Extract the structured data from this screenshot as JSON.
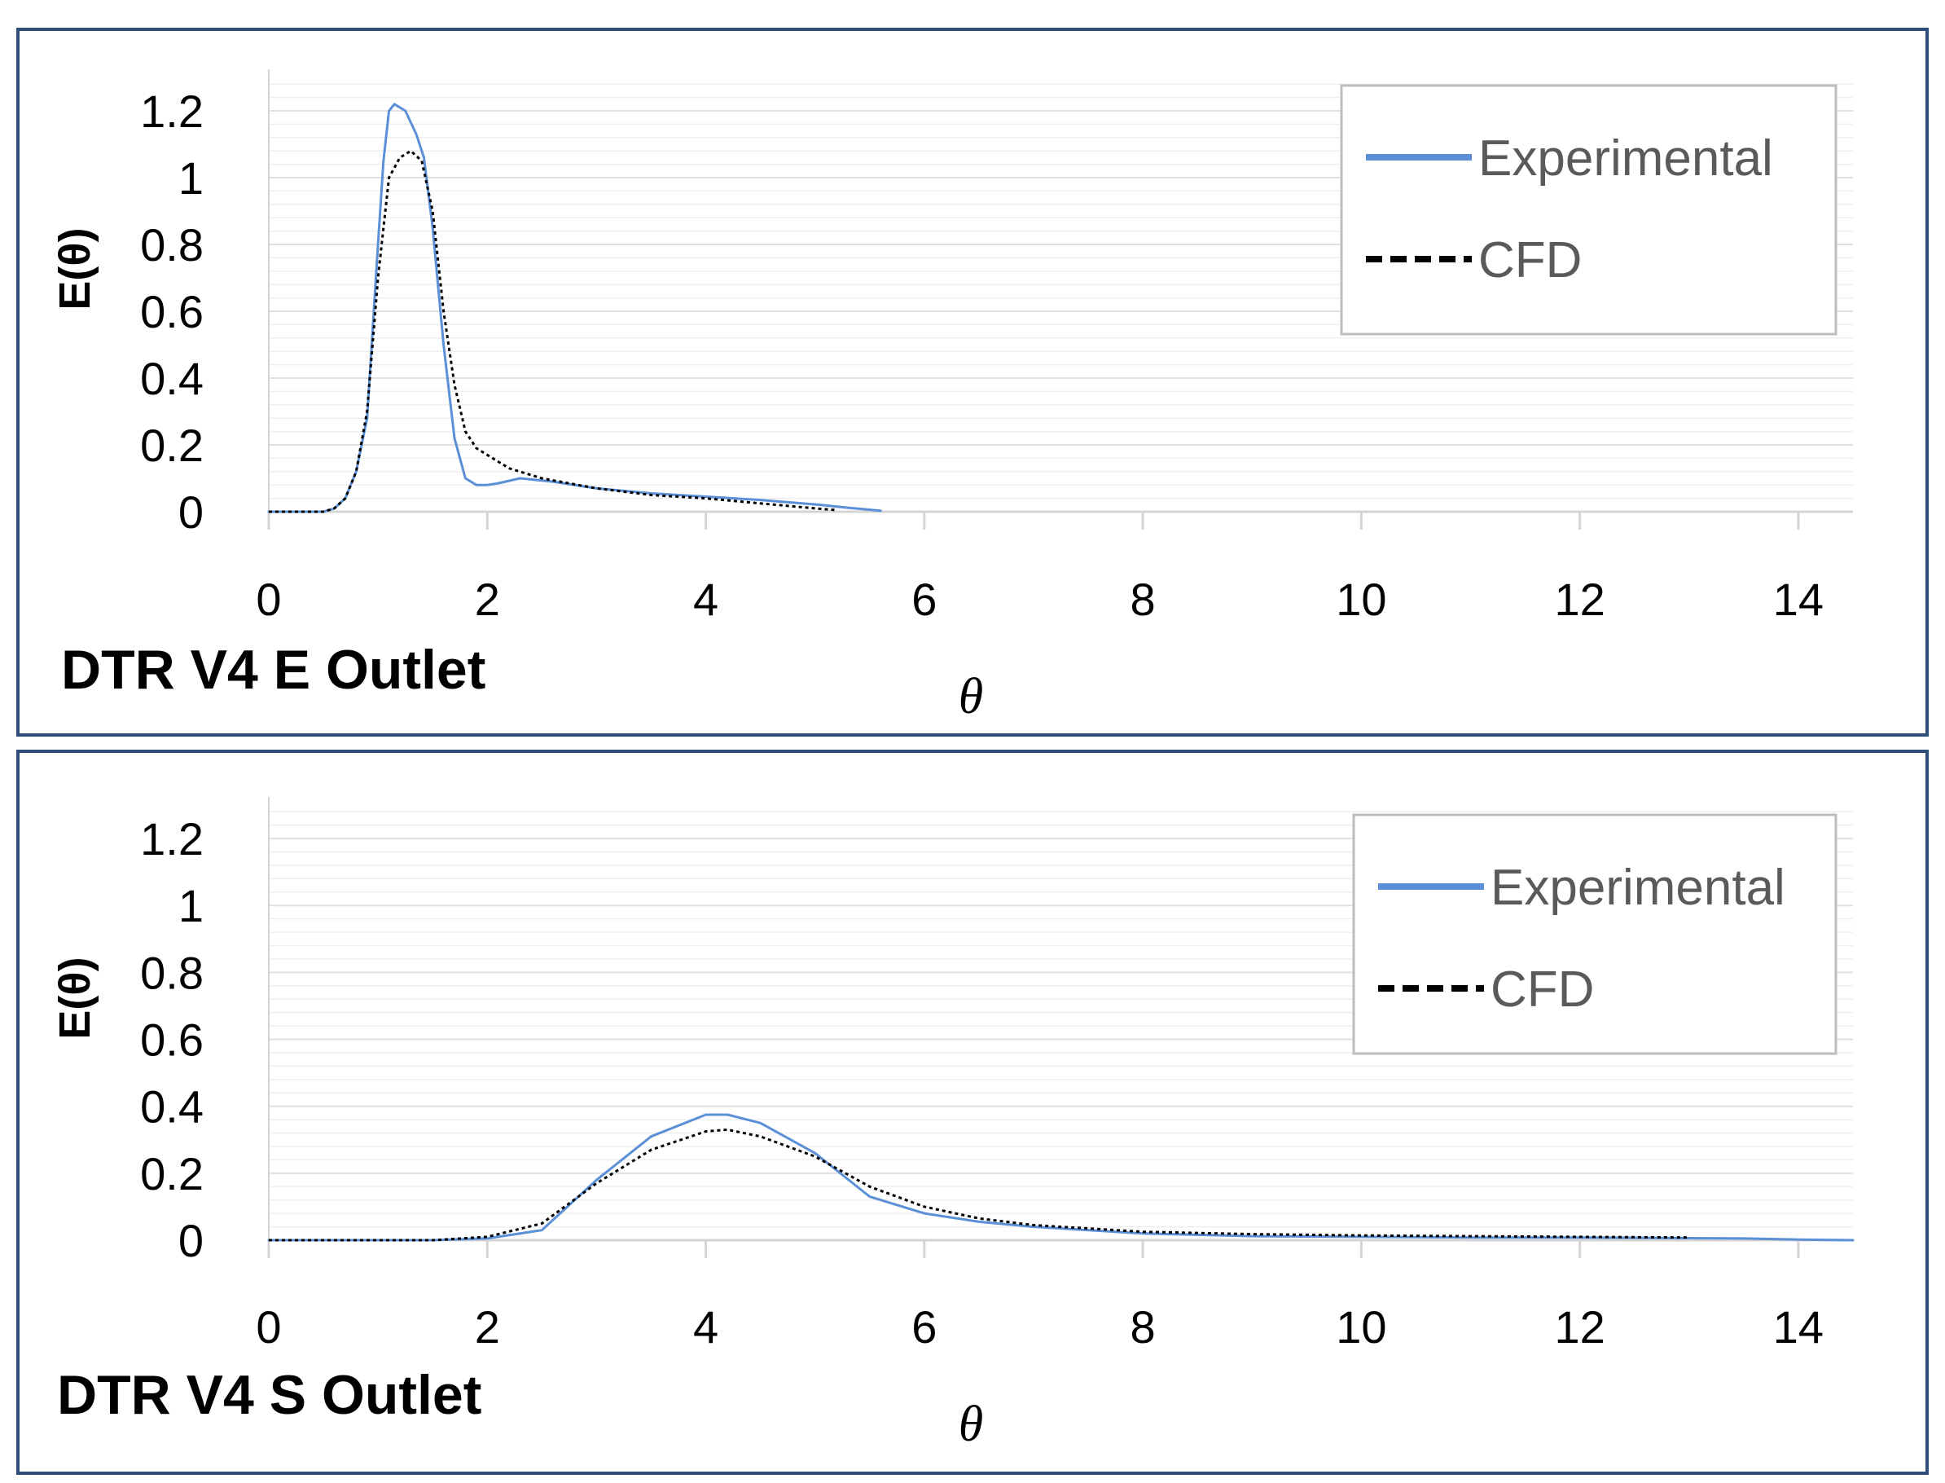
{
  "chart_data": [
    {
      "type": "line",
      "title": "DTR V4 E Outlet",
      "xlabel": "θ",
      "ylabel": "E(θ)",
      "xlim": [
        0,
        14.5
      ],
      "ylim": [
        0,
        1.3
      ],
      "x_ticks": [
        "0",
        "2",
        "4",
        "6",
        "8",
        "10",
        "12",
        "14"
      ],
      "y_ticks": [
        "0",
        "0.2",
        "0.4",
        "0.6",
        "0.8",
        "1",
        "1.2"
      ],
      "x_tick_values": [
        0,
        2,
        4,
        6,
        8,
        10,
        12,
        14
      ],
      "y_tick_values": [
        0,
        0.2,
        0.4,
        0.6,
        0.8,
        1.0,
        1.2
      ],
      "grid": "horizontal",
      "legend": "top-right",
      "series": [
        {
          "name": "Experimental",
          "color": "#5b8fd6",
          "style": "solid",
          "points": [
            [
              0,
              0
            ],
            [
              0.5,
              0
            ],
            [
              0.6,
              0.01
            ],
            [
              0.7,
              0.04
            ],
            [
              0.8,
              0.12
            ],
            [
              0.9,
              0.28
            ],
            [
              1.0,
              0.8
            ],
            [
              1.05,
              1.05
            ],
            [
              1.1,
              1.2
            ],
            [
              1.15,
              1.22
            ],
            [
              1.25,
              1.2
            ],
            [
              1.35,
              1.13
            ],
            [
              1.42,
              1.06
            ],
            [
              1.5,
              0.85
            ],
            [
              1.6,
              0.5
            ],
            [
              1.7,
              0.22
            ],
            [
              1.8,
              0.1
            ],
            [
              1.9,
              0.08
            ],
            [
              2.0,
              0.08
            ],
            [
              2.1,
              0.085
            ],
            [
              2.3,
              0.1
            ],
            [
              2.6,
              0.09
            ],
            [
              3.0,
              0.07
            ],
            [
              3.5,
              0.055
            ],
            [
              4.0,
              0.045
            ],
            [
              4.5,
              0.035
            ],
            [
              5.0,
              0.022
            ],
            [
              5.3,
              0.012
            ],
            [
              5.6,
              0.003
            ]
          ]
        },
        {
          "name": "CFD",
          "color": "#000000",
          "style": "dashed",
          "points": [
            [
              0,
              0
            ],
            [
              0.5,
              0
            ],
            [
              0.6,
              0.01
            ],
            [
              0.7,
              0.04
            ],
            [
              0.8,
              0.12
            ],
            [
              0.9,
              0.3
            ],
            [
              1.0,
              0.7
            ],
            [
              1.1,
              1.0
            ],
            [
              1.2,
              1.06
            ],
            [
              1.3,
              1.08
            ],
            [
              1.4,
              1.05
            ],
            [
              1.5,
              0.9
            ],
            [
              1.6,
              0.6
            ],
            [
              1.7,
              0.38
            ],
            [
              1.8,
              0.24
            ],
            [
              1.9,
              0.19
            ],
            [
              2.0,
              0.17
            ],
            [
              2.2,
              0.13
            ],
            [
              2.5,
              0.1
            ],
            [
              3.0,
              0.07
            ],
            [
              3.5,
              0.05
            ],
            [
              4.0,
              0.04
            ],
            [
              4.5,
              0.025
            ],
            [
              5.0,
              0.01
            ],
            [
              5.2,
              0.005
            ]
          ]
        }
      ]
    },
    {
      "type": "line",
      "title": "DTR V4 S Outlet",
      "xlabel": "θ",
      "ylabel": "E(θ)",
      "xlim": [
        0,
        14.5
      ],
      "ylim": [
        0,
        1.3
      ],
      "x_ticks": [
        "0",
        "2",
        "4",
        "6",
        "8",
        "10",
        "12",
        "14"
      ],
      "y_ticks": [
        "0",
        "0.2",
        "0.4",
        "0.6",
        "0.8",
        "1",
        "1.2"
      ],
      "x_tick_values": [
        0,
        2,
        4,
        6,
        8,
        10,
        12,
        14
      ],
      "y_tick_values": [
        0,
        0.2,
        0.4,
        0.6,
        0.8,
        1.0,
        1.2
      ],
      "grid": "horizontal",
      "legend": "top-right",
      "series": [
        {
          "name": "Experimental",
          "color": "#5b8fd6",
          "style": "solid",
          "points": [
            [
              0,
              0
            ],
            [
              1.5,
              0
            ],
            [
              2.0,
              0.005
            ],
            [
              2.5,
              0.03
            ],
            [
              3.0,
              0.18
            ],
            [
              3.5,
              0.31
            ],
            [
              4.0,
              0.375
            ],
            [
              4.2,
              0.375
            ],
            [
              4.5,
              0.35
            ],
            [
              5.0,
              0.26
            ],
            [
              5.5,
              0.13
            ],
            [
              6.0,
              0.08
            ],
            [
              6.5,
              0.055
            ],
            [
              7.0,
              0.04
            ],
            [
              8.0,
              0.02
            ],
            [
              9.0,
              0.012
            ],
            [
              10.0,
              0.01
            ],
            [
              11.0,
              0.008
            ],
            [
              12.0,
              0.008
            ],
            [
              13.0,
              0.006
            ],
            [
              13.5,
              0.005
            ],
            [
              14.0,
              0.002
            ],
            [
              14.5,
              0
            ]
          ]
        },
        {
          "name": "CFD",
          "color": "#000000",
          "style": "dashed",
          "points": [
            [
              0,
              0
            ],
            [
              1.5,
              0
            ],
            [
              2.0,
              0.01
            ],
            [
              2.5,
              0.05
            ],
            [
              3.0,
              0.17
            ],
            [
              3.5,
              0.27
            ],
            [
              4.0,
              0.325
            ],
            [
              4.2,
              0.33
            ],
            [
              4.5,
              0.31
            ],
            [
              5.0,
              0.25
            ],
            [
              5.5,
              0.16
            ],
            [
              6.0,
              0.1
            ],
            [
              6.5,
              0.065
            ],
            [
              7.0,
              0.045
            ],
            [
              8.0,
              0.025
            ],
            [
              9.0,
              0.018
            ],
            [
              10.0,
              0.014
            ],
            [
              11.0,
              0.012
            ],
            [
              12.0,
              0.01
            ],
            [
              13.0,
              0.008
            ]
          ]
        }
      ]
    }
  ]
}
